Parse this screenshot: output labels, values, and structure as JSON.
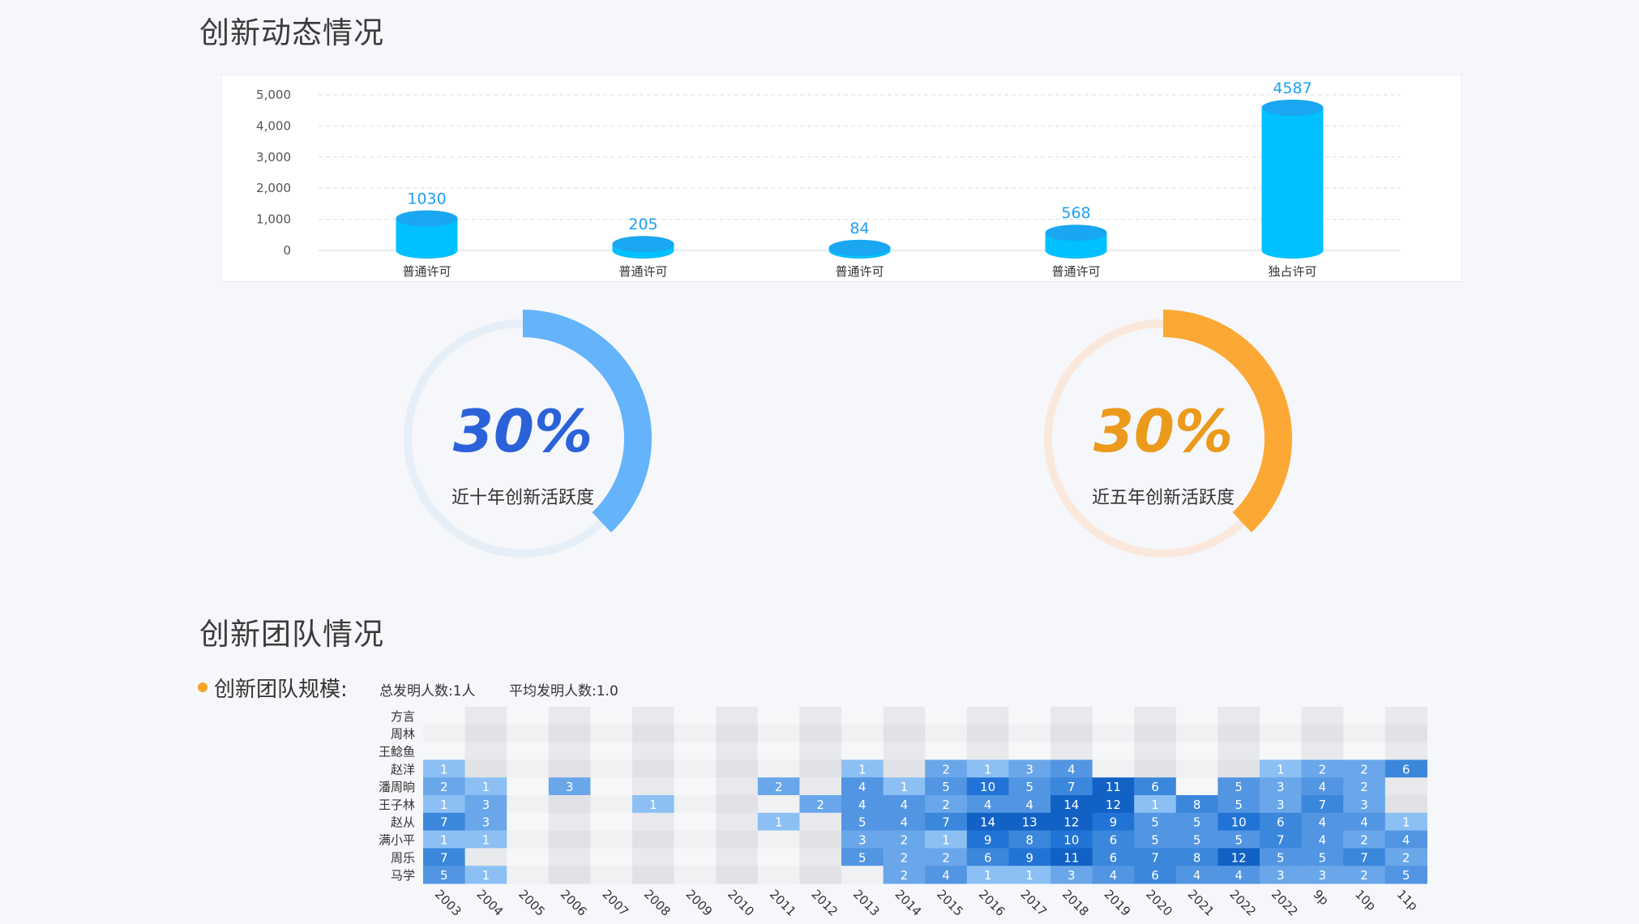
{
  "sections": {
    "dynamics_title": "创新动态情况",
    "team_title": "创新团队情况"
  },
  "colors": {
    "bar": "#00c0ff",
    "bar_top": "#1aa6f0",
    "bar_label": "#1e9ff2",
    "gauge1": "#64b3fb",
    "gauge1_track": "#e6eef8",
    "gauge1_text": "#2b62d9",
    "gauge2": "#fba834",
    "gauge2_track": "#fbe8dc",
    "gauge2_text": "#eb9a1c"
  },
  "gauges": [
    {
      "percent_text": "30%",
      "label": "近十年创新活跃度",
      "arc_fraction": 0.38
    },
    {
      "percent_text": "30%",
      "label": "近五年创新活跃度",
      "arc_fraction": 0.38
    }
  ],
  "team": {
    "label": "创新团队规模:",
    "total": "总发明人数:1人",
    "avg": "平均发明人数:1.0"
  },
  "chart_data": [
    {
      "type": "bar",
      "style": "3d-cylinder",
      "categories": [
        "普通许可",
        "普通许可",
        "普通许可",
        "普通许可",
        "独占许可"
      ],
      "values": [
        1030,
        205,
        84,
        568,
        4587
      ],
      "data_labels": [
        "1030",
        "205",
        "84",
        "568",
        "4587"
      ],
      "ylim": [
        0,
        5000
      ],
      "yticks": [
        "0",
        "1,000",
        "2,000",
        "3,000",
        "4,000",
        "5,000"
      ],
      "ytick_values": [
        0,
        1000,
        2000,
        3000,
        4000,
        5000
      ],
      "grid": true
    },
    {
      "type": "heatmap",
      "x": [
        "2003",
        "2004",
        "2005",
        "2006",
        "2007",
        "2008",
        "2009",
        "2010",
        "2011",
        "2012",
        "2013",
        "2014",
        "2015",
        "2016",
        "2017",
        "2018",
        "2019",
        "2020",
        "2021",
        "2022",
        "2022",
        "9p",
        "10p",
        "11p"
      ],
      "y": [
        "方言",
        "周林",
        "王鲶鱼",
        "赵洋",
        "潘周晌",
        "王子林",
        "赵从",
        "满小平",
        "周乐",
        "马学"
      ],
      "values": [
        [
          null,
          null,
          null,
          null,
          null,
          null,
          null,
          null,
          null,
          null,
          null,
          null,
          null,
          null,
          null,
          null,
          null,
          null,
          null,
          null,
          null,
          null,
          null,
          null
        ],
        [
          null,
          null,
          null,
          null,
          null,
          null,
          null,
          null,
          null,
          null,
          null,
          null,
          null,
          null,
          null,
          null,
          null,
          null,
          null,
          null,
          null,
          null,
          null,
          null
        ],
        [
          null,
          null,
          null,
          null,
          null,
          null,
          null,
          null,
          null,
          null,
          null,
          null,
          null,
          null,
          null,
          null,
          null,
          null,
          null,
          null,
          null,
          null,
          null,
          null
        ],
        [
          1,
          null,
          null,
          null,
          null,
          null,
          null,
          null,
          null,
          null,
          1,
          null,
          2,
          1,
          3,
          4,
          null,
          null,
          null,
          null,
          1,
          2,
          2,
          6
        ],
        [
          2,
          1,
          null,
          3,
          null,
          null,
          null,
          null,
          2,
          null,
          4,
          1,
          5,
          10,
          5,
          7,
          11,
          6,
          null,
          5,
          3,
          4,
          2,
          null
        ],
        [
          1,
          3,
          null,
          null,
          null,
          1,
          null,
          null,
          null,
          2,
          4,
          4,
          2,
          4,
          4,
          14,
          12,
          1,
          8,
          5,
          3,
          7,
          3,
          null
        ],
        [
          7,
          3,
          null,
          null,
          null,
          null,
          null,
          null,
          1,
          null,
          5,
          4,
          7,
          14,
          13,
          12,
          9,
          5,
          5,
          10,
          6,
          4,
          4,
          1
        ],
        [
          1,
          1,
          null,
          null,
          null,
          null,
          null,
          null,
          null,
          null,
          3,
          2,
          1,
          9,
          8,
          10,
          6,
          5,
          5,
          5,
          7,
          4,
          2,
          4
        ],
        [
          7,
          null,
          null,
          null,
          null,
          null,
          null,
          null,
          null,
          null,
          5,
          2,
          2,
          6,
          9,
          11,
          6,
          7,
          8,
          12,
          5,
          5,
          7,
          2
        ],
        [
          5,
          1,
          null,
          null,
          null,
          null,
          null,
          null,
          null,
          null,
          null,
          2,
          4,
          1,
          1,
          3,
          4,
          6,
          4,
          4,
          3,
          3,
          2,
          5
        ]
      ]
    }
  ]
}
